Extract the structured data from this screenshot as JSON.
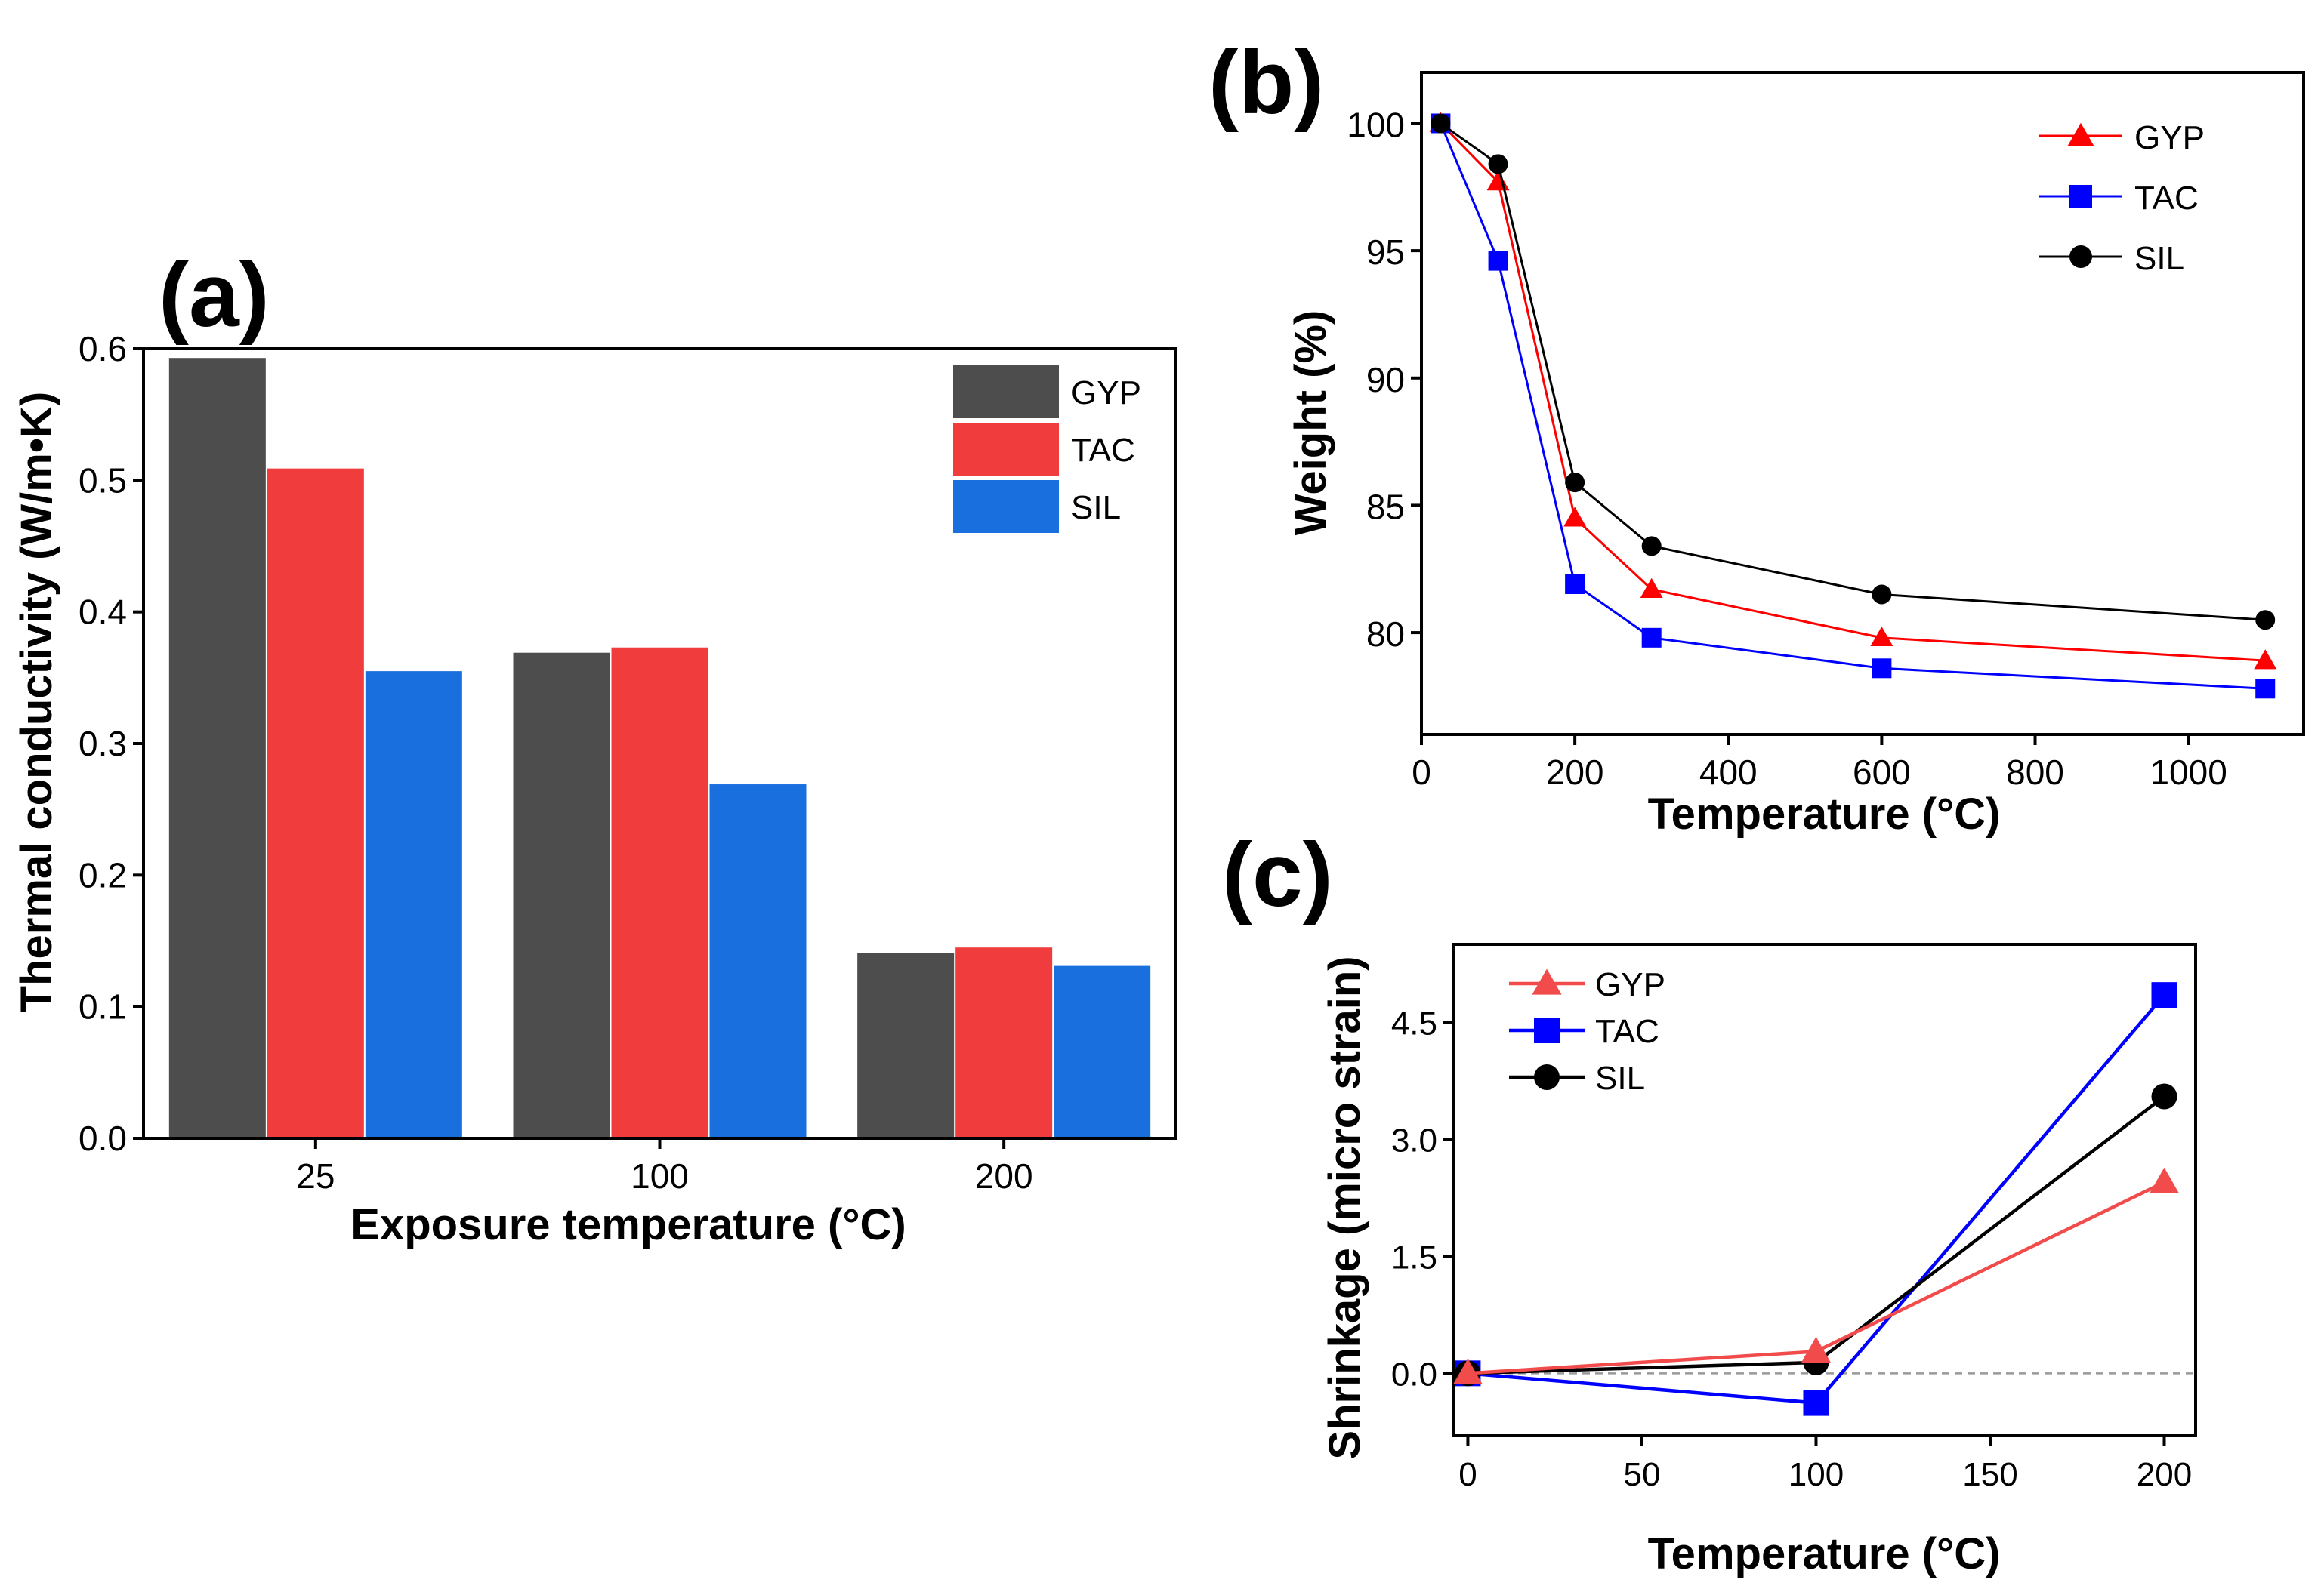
{
  "chart_data": [
    {
      "id": "a",
      "panel_label": "(a)",
      "type": "bar",
      "categories": [
        "25",
        "100",
        "200"
      ],
      "series": [
        {
          "name": "GYP",
          "color": "#4d4d4d",
          "values": [
            0.593,
            0.369,
            0.141
          ]
        },
        {
          "name": "TAC",
          "color": "#f03c3c",
          "values": [
            0.509,
            0.373,
            0.145
          ]
        },
        {
          "name": "SIL",
          "color": "#1a6fdf",
          "values": [
            0.355,
            0.269,
            0.131
          ]
        }
      ],
      "xlabel": "Exposure temperature (°C)",
      "ylabel": "Thermal conductivity (W/m•K)",
      "ylim": [
        0,
        0.6
      ],
      "yticks": [
        "0.0",
        "0.1",
        "0.2",
        "0.3",
        "0.4",
        "0.5",
        "0.6"
      ],
      "legend_position": "top-right"
    },
    {
      "id": "b",
      "panel_label": "(b)",
      "type": "line",
      "series": [
        {
          "name": "GYP",
          "color": "#ff0000",
          "marker": "triangle",
          "x": [
            25,
            100,
            200,
            300,
            600,
            1100
          ],
          "values": [
            100.0,
            97.7,
            84.5,
            81.7,
            79.8,
            78.9
          ]
        },
        {
          "name": "TAC",
          "color": "#0000ff",
          "marker": "square",
          "x": [
            25,
            100,
            200,
            300,
            600,
            1100
          ],
          "values": [
            100.0,
            94.6,
            81.9,
            79.8,
            78.6,
            77.8
          ]
        },
        {
          "name": "SIL",
          "color": "#000000",
          "marker": "circle",
          "x": [
            25,
            100,
            200,
            300,
            600,
            1100
          ],
          "values": [
            100.0,
            98.4,
            85.9,
            83.4,
            81.5,
            80.5
          ]
        }
      ],
      "xlabel": "Temperature (°C)",
      "ylabel": "Weight (%)",
      "xlim": [
        0,
        1150
      ],
      "ylim": [
        76,
        102
      ],
      "xticks": [
        0,
        200,
        400,
        600,
        800,
        1000
      ],
      "yticks": [
        80,
        85,
        90,
        95,
        100
      ],
      "legend_position": "top-right"
    },
    {
      "id": "c",
      "panel_label": "(c)",
      "type": "line",
      "series": [
        {
          "name": "GYP",
          "color": "#f24b4b",
          "marker": "triangle",
          "x": [
            0,
            100,
            200
          ],
          "values": [
            0.0,
            0.28,
            2.45
          ]
        },
        {
          "name": "TAC",
          "color": "#0000ff",
          "marker": "square",
          "x": [
            0,
            100,
            200
          ],
          "values": [
            0.0,
            -0.38,
            4.85
          ]
        },
        {
          "name": "SIL",
          "color": "#000000",
          "marker": "circle",
          "x": [
            0,
            100,
            200
          ],
          "values": [
            0.0,
            0.14,
            3.55
          ]
        }
      ],
      "xlabel": "Temperature (°C)",
      "ylabel": "Shrinkage (micro strain)",
      "xlim": [
        -4,
        209
      ],
      "ylim": [
        -0.8,
        5.5
      ],
      "xticks": [
        0,
        50,
        100,
        150,
        200
      ],
      "yticks": [
        "0.0",
        "1.5",
        "3.0",
        "4.5"
      ],
      "reference_line": 0,
      "legend_position": "top-left"
    }
  ]
}
